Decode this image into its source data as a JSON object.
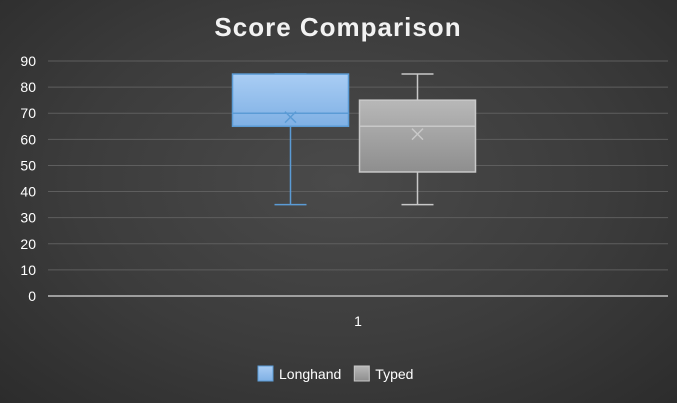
{
  "chart_data": {
    "type": "box",
    "title": "Score Comparison",
    "xlabel": "",
    "ylabel": "",
    "ylim": [
      0,
      90
    ],
    "y_ticks": [
      "0",
      "10",
      "20",
      "30",
      "40",
      "50",
      "60",
      "70",
      "80",
      "90"
    ],
    "categories": [
      "1"
    ],
    "grid": true,
    "legend_position": "bottom",
    "series": [
      {
        "name": "Longhand",
        "min": 35,
        "q1": 65,
        "median": 70,
        "q3": 85,
        "max": 85,
        "mean": 68.5,
        "fill": "#8fbbea",
        "stroke": "#5b9bd5"
      },
      {
        "name": "Typed",
        "min": 35,
        "q1": 47.5,
        "median": 65,
        "q3": 75,
        "max": 85,
        "mean": 62,
        "fill": "#a8a8a8",
        "stroke": "#c8c8c8"
      }
    ]
  }
}
